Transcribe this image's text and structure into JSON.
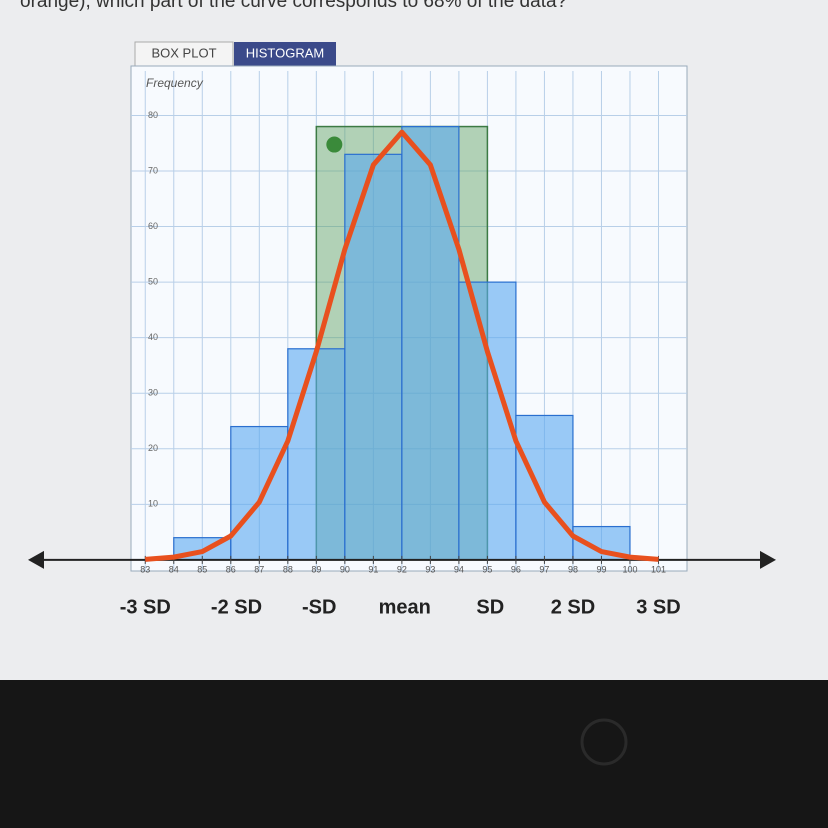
{
  "question": "orange), which part of the curve corresponds to 68% of the data?",
  "tabs": [
    "BOX PLOT",
    "HISTOGRAM"
  ],
  "chart_data": {
    "type": "histogram",
    "ylabel": "Frequency",
    "bins": [
      84,
      86,
      88,
      90,
      92,
      94,
      96,
      98,
      100
    ],
    "values": [
      4,
      24,
      38,
      73,
      78,
      50,
      26,
      6
    ],
    "color": "#5aa8f0",
    "xlim": [
      82.5,
      102
    ],
    "ylim": [
      -2,
      88
    ],
    "xticks": [
      83,
      84,
      85,
      86,
      87,
      88,
      89,
      90,
      91,
      92,
      93,
      94,
      95,
      96,
      97,
      98,
      99,
      100,
      101
    ],
    "yticks": [
      10,
      20,
      30,
      40,
      50,
      60,
      70,
      80
    ],
    "grid": true,
    "highlight": {
      "from": 89,
      "to": 95,
      "value": 78,
      "color": "#5aa060"
    },
    "curve": {
      "color": "#e8501e",
      "x": [
        83,
        84,
        85,
        86,
        87,
        88,
        89,
        90,
        91,
        92,
        93,
        94,
        95,
        96,
        97,
        98,
        99,
        100,
        101
      ],
      "values": [
        0.1,
        0.5,
        1.5,
        4.3,
        10.4,
        21.4,
        37.5,
        55.9,
        71.1,
        77,
        71.1,
        55.9,
        37.5,
        21.4,
        10.4,
        4.3,
        1.5,
        0.5,
        0.1
      ]
    },
    "annotations": [
      {
        "x": 83,
        "text": "-3 SD"
      },
      {
        "x": 86.2,
        "text": "-2 SD"
      },
      {
        "x": 89.1,
        "text": "-SD"
      },
      {
        "x": 92.1,
        "text": "mean"
      },
      {
        "x": 95.1,
        "text": "SD"
      },
      {
        "x": 98,
        "text": "2 SD"
      },
      {
        "x": 101,
        "text": "3 SD"
      }
    ]
  }
}
